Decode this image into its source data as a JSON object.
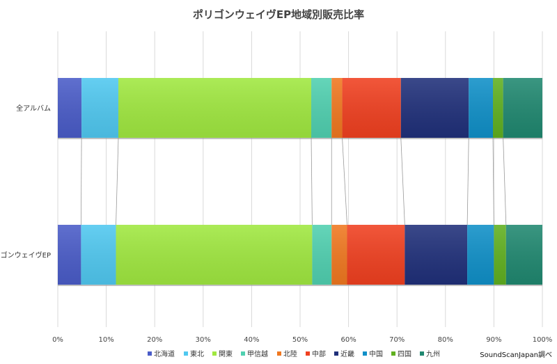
{
  "chart_data": {
    "type": "bar",
    "orientation": "horizontal",
    "stacked": "percent",
    "title": "ポリゴンウェイヴEP地域別販売比率",
    "categories": [
      "全アルバム",
      "ポリゴンウェイヴEP"
    ],
    "xlim": [
      0,
      100
    ],
    "x_ticks": [
      "0%",
      "10%",
      "20%",
      "30%",
      "40%",
      "50%",
      "60%",
      "70%",
      "80%",
      "90%",
      "100%"
    ],
    "grid": "vertical",
    "legend_position": "bottom",
    "series": [
      {
        "name": "北海道",
        "color": "#4a5cc8",
        "values": [
          4.9,
          4.8
        ]
      },
      {
        "name": "東北",
        "color": "#50c8f0",
        "values": [
          7.6,
          7.2
        ]
      },
      {
        "name": "関東",
        "color": "#a0e840",
        "values": [
          39.8,
          40.5
        ]
      },
      {
        "name": "甲信越",
        "color": "#50d0b0",
        "values": [
          4.2,
          4.0
        ]
      },
      {
        "name": "北陸",
        "color": "#f07820",
        "values": [
          2.2,
          3.2
        ]
      },
      {
        "name": "中部",
        "color": "#f04020",
        "values": [
          12.1,
          11.9
        ]
      },
      {
        "name": "近畿",
        "color": "#20307a",
        "values": [
          14.0,
          12.9
        ]
      },
      {
        "name": "中国",
        "color": "#1090c8",
        "values": [
          5.0,
          5.5
        ]
      },
      {
        "name": "四国",
        "color": "#60b020",
        "values": [
          2.1,
          2.5
        ]
      },
      {
        "name": "九州",
        "color": "#208870",
        "values": [
          8.1,
          7.5
        ]
      }
    ],
    "source": "SoundScanJapan調べ"
  }
}
